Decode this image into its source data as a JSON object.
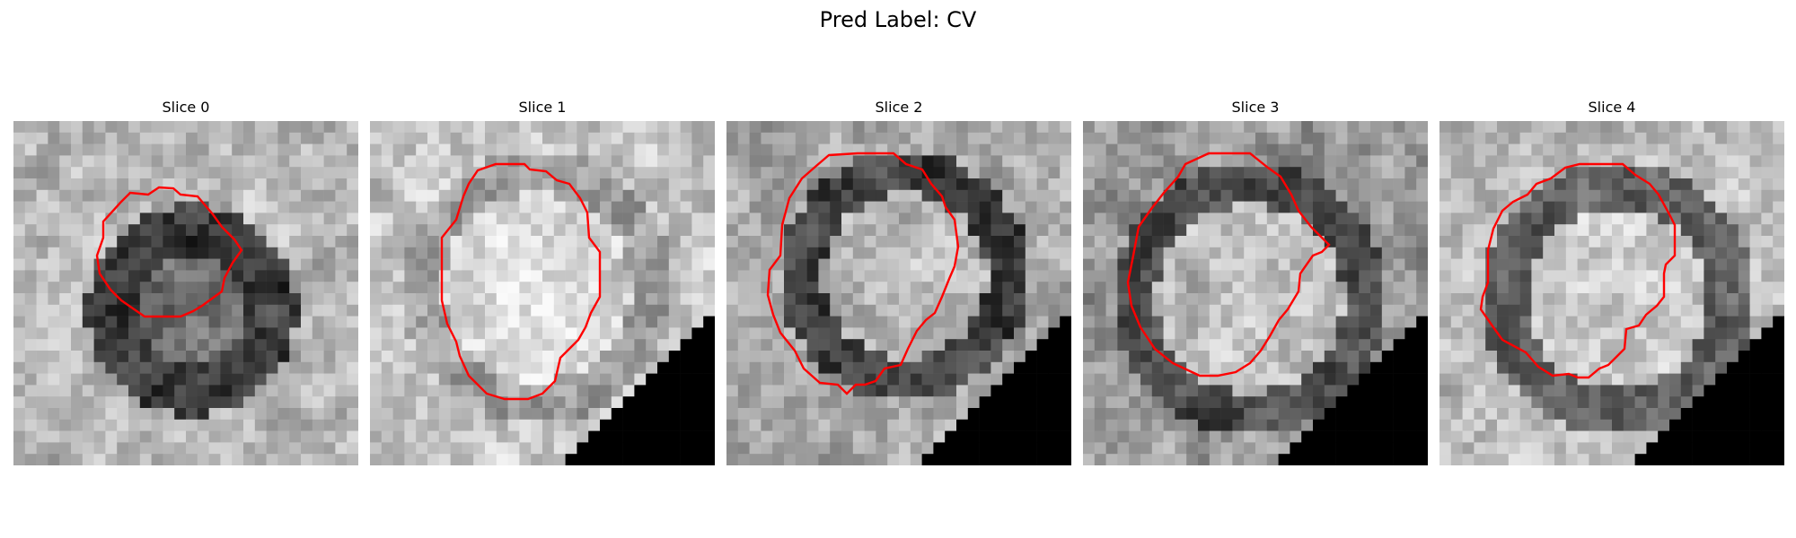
{
  "figure": {
    "title": "Pred Label: CV",
    "contour_color": "#ff0000",
    "mask_color": "#000000",
    "colormap": "gray"
  },
  "panels": [
    {
      "title": "Slice 0"
    },
    {
      "title": "Slice 1"
    },
    {
      "title": "Slice 2"
    },
    {
      "title": "Slice 3"
    },
    {
      "title": "Slice 4"
    }
  ]
}
